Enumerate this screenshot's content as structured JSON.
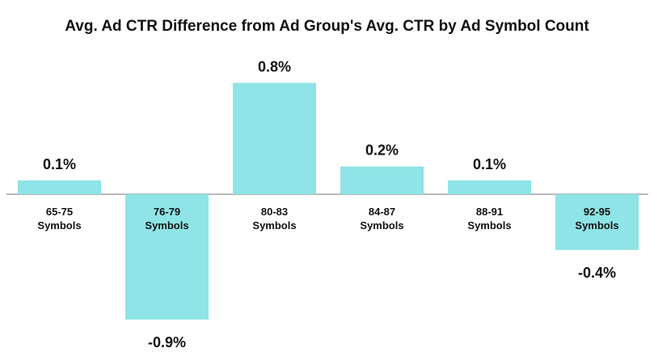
{
  "chart_data": {
    "type": "bar",
    "title": "Avg. Ad CTR Difference from Ad Group's Avg. CTR by Ad Symbol Count",
    "categories": [
      [
        "65-75",
        "Symbols"
      ],
      [
        "76-79",
        "Symbols"
      ],
      [
        "80-83",
        "Symbols"
      ],
      [
        "84-87",
        "Symbols"
      ],
      [
        "88-91",
        "Symbols"
      ],
      [
        "92-95",
        "Symbols"
      ]
    ],
    "values": [
      0.1,
      -0.9,
      0.8,
      0.2,
      0.1,
      -0.4
    ],
    "value_labels": [
      "0.1%",
      "-0.9%",
      "0.8%",
      "0.2%",
      "0.1%",
      "-0.4%"
    ],
    "unit": "%",
    "bar_color": "#8ee4e6",
    "axis_color": "#a0a0a0",
    "grid": false,
    "legend": "none"
  }
}
